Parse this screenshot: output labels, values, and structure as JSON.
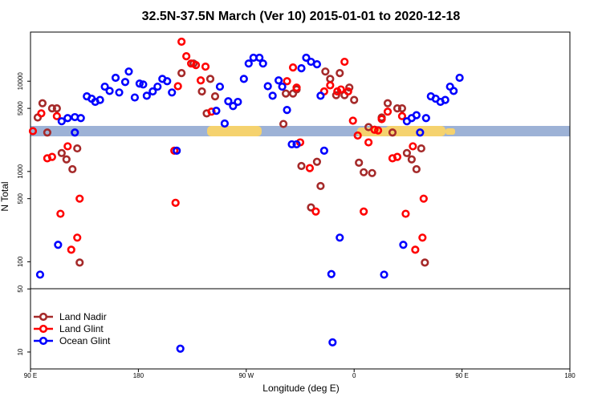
{
  "chart_data": {
    "type": "scatter",
    "title": "32.5N-37.5N March (Ver 10)   2015-01-01 to 2020-12-18",
    "x_label": "Longitude (deg E)",
    "y_label": "N Total",
    "xlim": [
      90,
      540
    ],
    "ylim": [
      6.5,
      35000
    ],
    "log_y": true,
    "legend": "bottomleft",
    "xticks": [
      {
        "value": 90,
        "label": "90 E"
      },
      180,
      {
        "value": 270,
        "label": "90 W"
      },
      {
        "value": 360,
        "label": "0"
      },
      {
        "value": 450,
        "label": "90 E"
      },
      {
        "value": 540,
        "label": "180"
      }
    ],
    "yticks": [
      10,
      50,
      100,
      500,
      1000,
      5000,
      10000
    ],
    "series": [
      {
        "name": "Land Nadir",
        "color": "#a52a2a",
        "x": [
          96,
          100,
          104,
          108,
          112,
          116,
          120,
          125,
          129,
          131,
          216,
          226,
          233,
          237,
          240,
          244,
          301,
          303,
          309,
          312,
          316,
          324,
          329,
          332,
          336,
          340,
          345,
          348,
          352,
          356,
          360,
          364,
          368,
          372,
          375,
          383,
          388,
          392,
          396,
          400,
          404,
          408,
          412,
          416,
          419
        ],
        "values": [
          3960,
          5700,
          2700,
          5000,
          5000,
          1600,
          1360,
          1060,
          1800,
          98,
          12300,
          15700,
          7700,
          4400,
          10600,
          6800,
          3360,
          7300,
          7300,
          8100,
          1150,
          400,
          1280,
          690,
          12800,
          10600,
          7000,
          12300,
          7000,
          8500,
          6200,
          1250,
          980,
          3100,
          960,
          3960,
          5700,
          2700,
          5000,
          5000,
          1600,
          1360,
          1060,
          1800,
          98
        ]
      },
      {
        "name": "Land Glint",
        "color": "#ff0000",
        "x": [
          92,
          99,
          104,
          108,
          112,
          115,
          121,
          124,
          129,
          131,
          210,
          211,
          213,
          216,
          220,
          224,
          228,
          232,
          236,
          241,
          304,
          309,
          312,
          315,
          323,
          328,
          335,
          340,
          346,
          349,
          352,
          355,
          359,
          363,
          368,
          372,
          377,
          380,
          383,
          388,
          392,
          396,
          400,
          403,
          409,
          411,
          417,
          418
        ],
        "values": [
          2800,
          4400,
          1400,
          1450,
          4100,
          340,
          1900,
          136,
          185,
          500,
          1700,
          450,
          8800,
          27400,
          18900,
          15700,
          15100,
          10200,
          14500,
          4600,
          10000,
          14200,
          8500,
          2100,
          1090,
          360,
          7700,
          9000,
          7700,
          8100,
          16400,
          7700,
          3650,
          2500,
          360,
          2100,
          2900,
          2850,
          3800,
          4600,
          1400,
          1450,
          4100,
          340,
          1900,
          136,
          185,
          500
        ]
      },
      {
        "name": "Ocean Glint",
        "color": "#0000ff",
        "x": [
          98,
          113,
          116,
          121,
          127,
          127,
          132,
          137,
          141,
          144,
          148,
          152,
          156,
          161,
          164,
          169,
          172,
          177,
          181,
          184,
          187,
          192,
          196,
          200,
          204,
          208,
          212,
          215,
          245,
          248,
          252,
          255,
          259,
          263,
          268,
          272,
          276,
          281,
          284,
          288,
          292,
          297,
          300,
          304,
          308,
          312,
          316,
          320,
          324,
          329,
          332,
          335,
          341,
          342,
          348,
          385,
          401,
          404,
          408,
          412,
          415,
          420,
          424,
          428,
          432,
          436,
          440,
          443,
          448
        ],
        "values": [
          72,
          154,
          3600,
          3900,
          4000,
          2700,
          3900,
          6800,
          6400,
          5900,
          6200,
          8700,
          7800,
          10900,
          7500,
          9800,
          12800,
          6600,
          9400,
          9200,
          6900,
          7700,
          8700,
          10600,
          10000,
          7500,
          1700,
          10.9,
          4700,
          8700,
          3400,
          6000,
          5300,
          5900,
          10600,
          15700,
          18200,
          18200,
          15700,
          8800,
          6900,
          10200,
          8700,
          4800,
          2000,
          2000,
          13900,
          18200,
          16400,
          15400,
          6900,
          1700,
          73,
          12.8,
          185,
          72,
          154,
          3600,
          3900,
          4200,
          2700,
          3900,
          6800,
          6400,
          5900,
          6200,
          8700,
          7800,
          10900
        ]
      }
    ]
  }
}
